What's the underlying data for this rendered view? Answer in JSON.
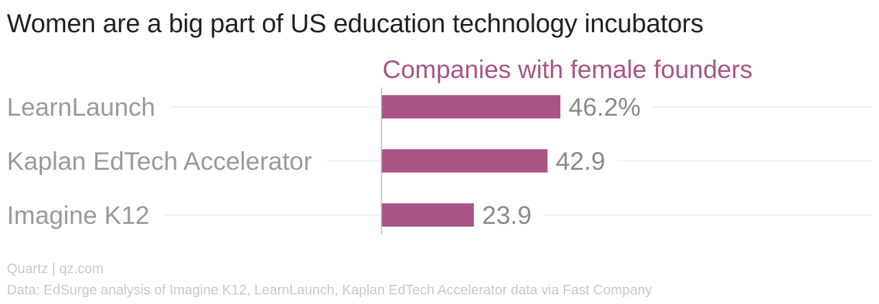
{
  "title": "Women are a big part of US education technology incubators",
  "chart_data": {
    "type": "bar",
    "orientation": "horizontal",
    "series": [
      {
        "name": "Companies with female founders"
      }
    ],
    "categories": [
      "LearnLaunch",
      "Kaplan EdTech Accelerator",
      "Imagine K12"
    ],
    "values": [
      46.2,
      42.9,
      23.9
    ],
    "value_labels": [
      "46.2%",
      "42.9",
      "23.9"
    ],
    "xlim": [
      0,
      100
    ],
    "grid": false,
    "colors": {
      "bar": "#a85586",
      "series_title": "#a85586",
      "category_label": "#9a9a9a",
      "value_label": "#8a8a8a",
      "guide_line": "#ececec",
      "axis": "#b5b5b5"
    }
  },
  "footer": {
    "source": "Quartz | qz.com",
    "note": "Data: EdSurge analysis of Imagine K12, LearnLaunch, Kaplan EdTech Accelerator data via Fast Company"
  }
}
